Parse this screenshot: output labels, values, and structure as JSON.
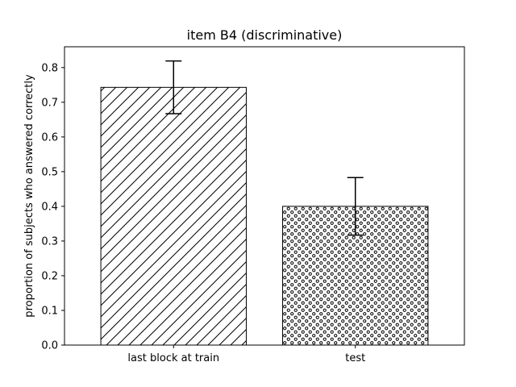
{
  "chart_data": {
    "type": "bar",
    "title": "item B4 (discriminative)",
    "xlabel": "",
    "ylabel": "proportion of subjects who answered correctly",
    "categories": [
      "last block at train",
      "test"
    ],
    "values": [
      0.743,
      0.4
    ],
    "errors": [
      0.076,
      0.083
    ],
    "hatches": [
      "diagonal",
      "dots"
    ],
    "bar_color": "#ffffff",
    "edge_color": "#000000",
    "ylim": [
      0,
      0.86
    ],
    "yticks": [
      0.0,
      0.1,
      0.2,
      0.3,
      0.4,
      0.5,
      0.6,
      0.7,
      0.8
    ],
    "ytick_labels": [
      "0.0",
      "0.1",
      "0.2",
      "0.3",
      "0.4",
      "0.5",
      "0.6",
      "0.7",
      "0.8"
    ],
    "grid": false,
    "legend": "none"
  }
}
